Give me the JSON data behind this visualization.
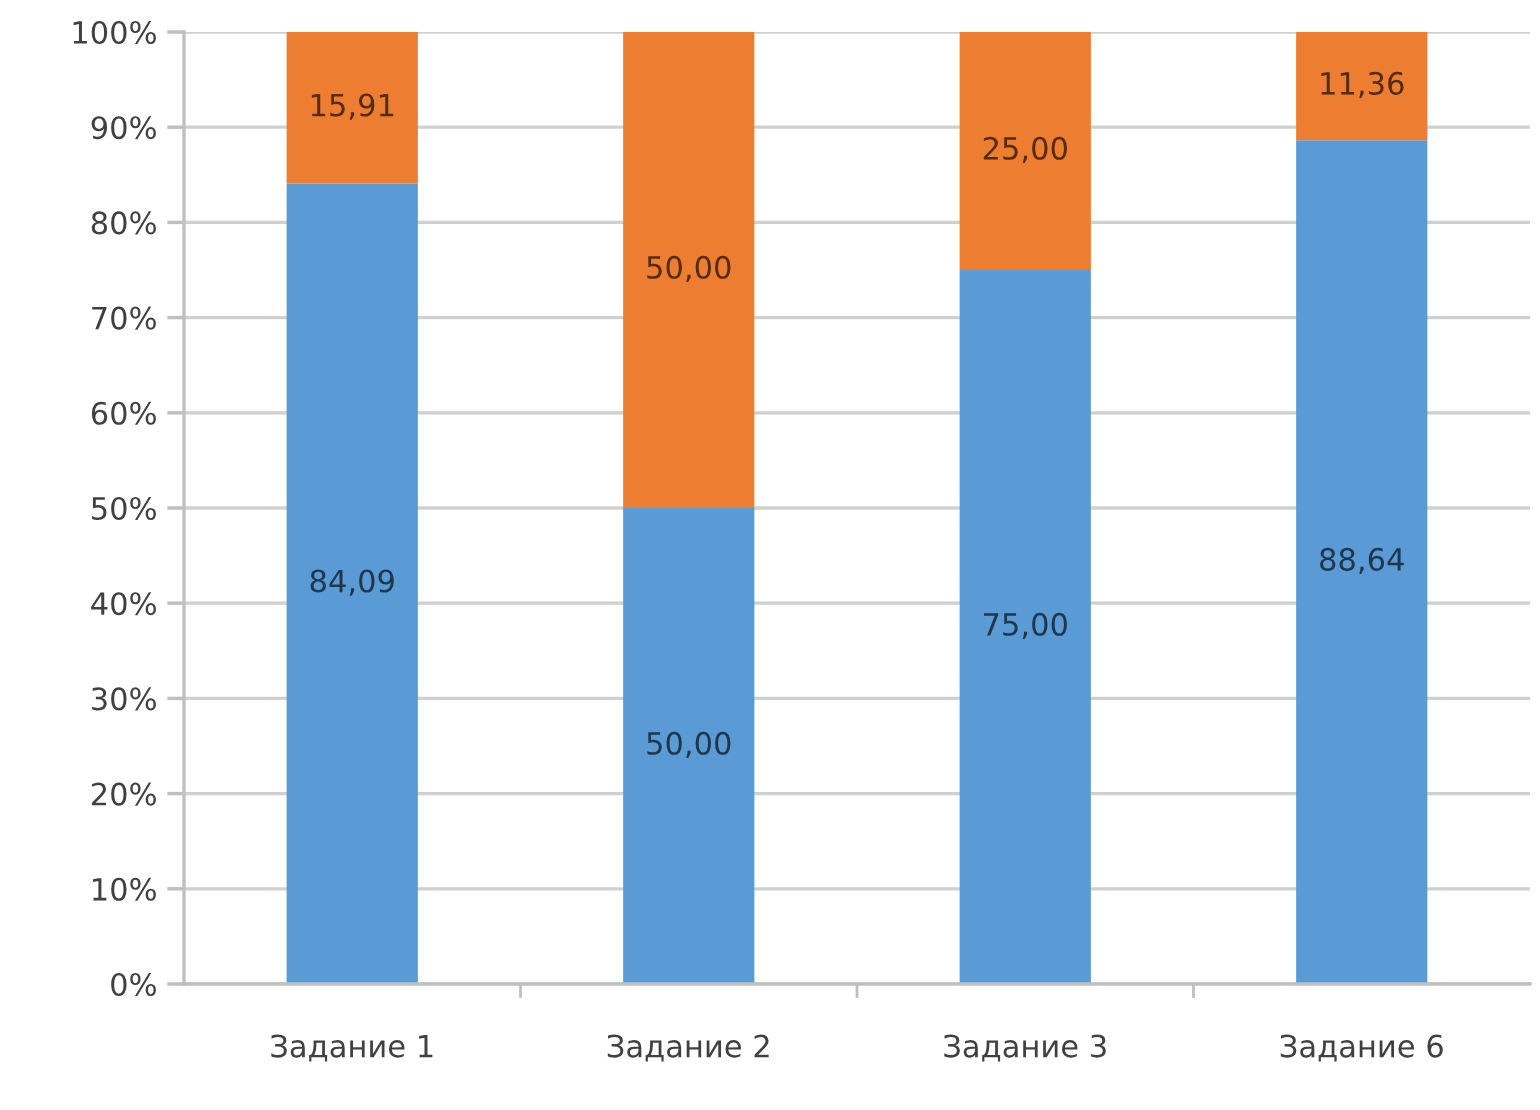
{
  "chart_data": {
    "type": "bar",
    "stacked": true,
    "categories": [
      "Задание 1",
      "Задание 2",
      "Задание 3",
      "Задание 6"
    ],
    "series": [
      {
        "color": "#5b9bd5",
        "values": [
          84.09,
          50.0,
          75.0,
          88.64
        ],
        "value_labels": [
          "84,09",
          "50,00",
          "75,00",
          "88,64"
        ]
      },
      {
        "color": "#ed7d31",
        "values": [
          15.91,
          50.0,
          25.0,
          11.36
        ],
        "value_labels": [
          "15,91",
          "50,00",
          "25,00",
          "11,36"
        ]
      }
    ],
    "ylim": [
      0,
      100
    ],
    "yticks": [
      {
        "value": 0,
        "label": "0%"
      },
      {
        "value": 10,
        "label": "10%"
      },
      {
        "value": 20,
        "label": "20%"
      },
      {
        "value": 30,
        "label": "30%"
      },
      {
        "value": 40,
        "label": "40%"
      },
      {
        "value": 50,
        "label": "50%"
      },
      {
        "value": 60,
        "label": "60%"
      },
      {
        "value": 70,
        "label": "70%"
      },
      {
        "value": 80,
        "label": "80%"
      },
      {
        "value": 90,
        "label": "90%"
      },
      {
        "value": 100,
        "label": "100%"
      }
    ],
    "grid": "y"
  }
}
